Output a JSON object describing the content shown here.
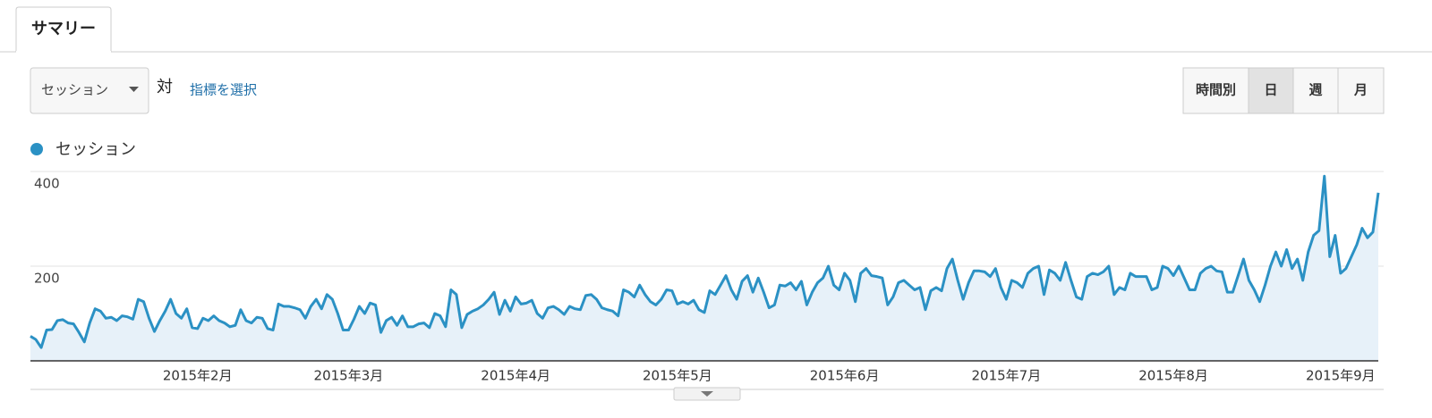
{
  "ui": {
    "tab": "サマリー",
    "metric_dropdown": "セッション",
    "versus": "対",
    "select_metric": "指標を選択",
    "buttons": [
      "時間別",
      "日",
      "週",
      "月"
    ],
    "active_button": 1
  },
  "chart_data": {
    "type": "area",
    "series": [
      {
        "name": "セッション",
        "color": "#2b91c4",
        "fill": "#e7f1f9",
        "values": [
          52,
          45,
          28,
          65,
          66,
          85,
          87,
          80,
          78,
          60,
          40,
          80,
          110,
          105,
          90,
          92,
          85,
          95,
          93,
          88,
          130,
          125,
          90,
          62,
          85,
          105,
          130,
          100,
          90,
          110,
          70,
          68,
          90,
          85,
          95,
          85,
          80,
          72,
          75,
          108,
          85,
          80,
          92,
          90,
          68,
          65,
          120,
          115,
          115,
          112,
          108,
          90,
          115,
          130,
          110,
          140,
          130,
          100,
          65,
          65,
          88,
          115,
          100,
          122,
          118,
          60,
          85,
          92,
          75,
          95,
          72,
          72,
          78,
          80,
          70,
          100,
          95,
          72,
          150,
          140,
          70,
          98,
          105,
          110,
          118,
          130,
          145,
          98,
          128,
          105,
          135,
          120,
          122,
          128,
          100,
          90,
          112,
          115,
          108,
          98,
          115,
          110,
          108,
          138,
          140,
          130,
          112,
          108,
          105,
          95,
          150,
          145,
          135,
          160,
          140,
          125,
          118,
          130,
          150,
          148,
          120,
          125,
          120,
          128,
          108,
          102,
          148,
          140,
          160,
          180,
          150,
          130,
          168,
          180,
          145,
          175,
          145,
          112,
          118,
          160,
          158,
          165,
          150,
          168,
          118,
          145,
          165,
          175,
          200,
          160,
          150,
          185,
          170,
          125,
          185,
          195,
          180,
          178,
          175,
          118,
          135,
          165,
          170,
          160,
          150,
          155,
          108,
          148,
          155,
          148,
          195,
          215,
          170,
          130,
          165,
          190,
          190,
          188,
          178,
          195,
          155,
          130,
          170,
          165,
          155,
          185,
          195,
          200,
          140,
          192,
          185,
          170,
          208,
          170,
          135,
          130,
          178,
          185,
          182,
          188,
          200,
          140,
          155,
          150,
          185,
          178,
          178,
          178,
          150,
          155,
          200,
          195,
          180,
          200,
          175,
          150,
          150,
          185,
          195,
          200,
          190,
          188,
          145,
          145,
          180,
          215,
          170,
          150,
          125,
          160,
          200,
          230,
          200,
          235,
          195,
          215,
          170,
          230,
          265,
          275,
          390,
          220,
          265,
          185,
          195,
          220,
          245,
          280,
          260,
          272,
          355
        ]
      }
    ],
    "ylim": [
      0,
      400
    ],
    "yticks": [
      200,
      400
    ],
    "grid": true,
    "xticks": [
      {
        "value": 31,
        "label": "2015年2月"
      },
      {
        "value": 59,
        "label": "2015年3月"
      },
      {
        "value": 90,
        "label": "2015年4月"
      },
      {
        "value": 120,
        "label": "2015年5月"
      },
      {
        "value": 151,
        "label": "2015年6月"
      },
      {
        "value": 181,
        "label": "2015年7月"
      },
      {
        "value": 212,
        "label": "2015年8月"
      },
      {
        "value": 243,
        "label": "2015年9月"
      }
    ]
  }
}
